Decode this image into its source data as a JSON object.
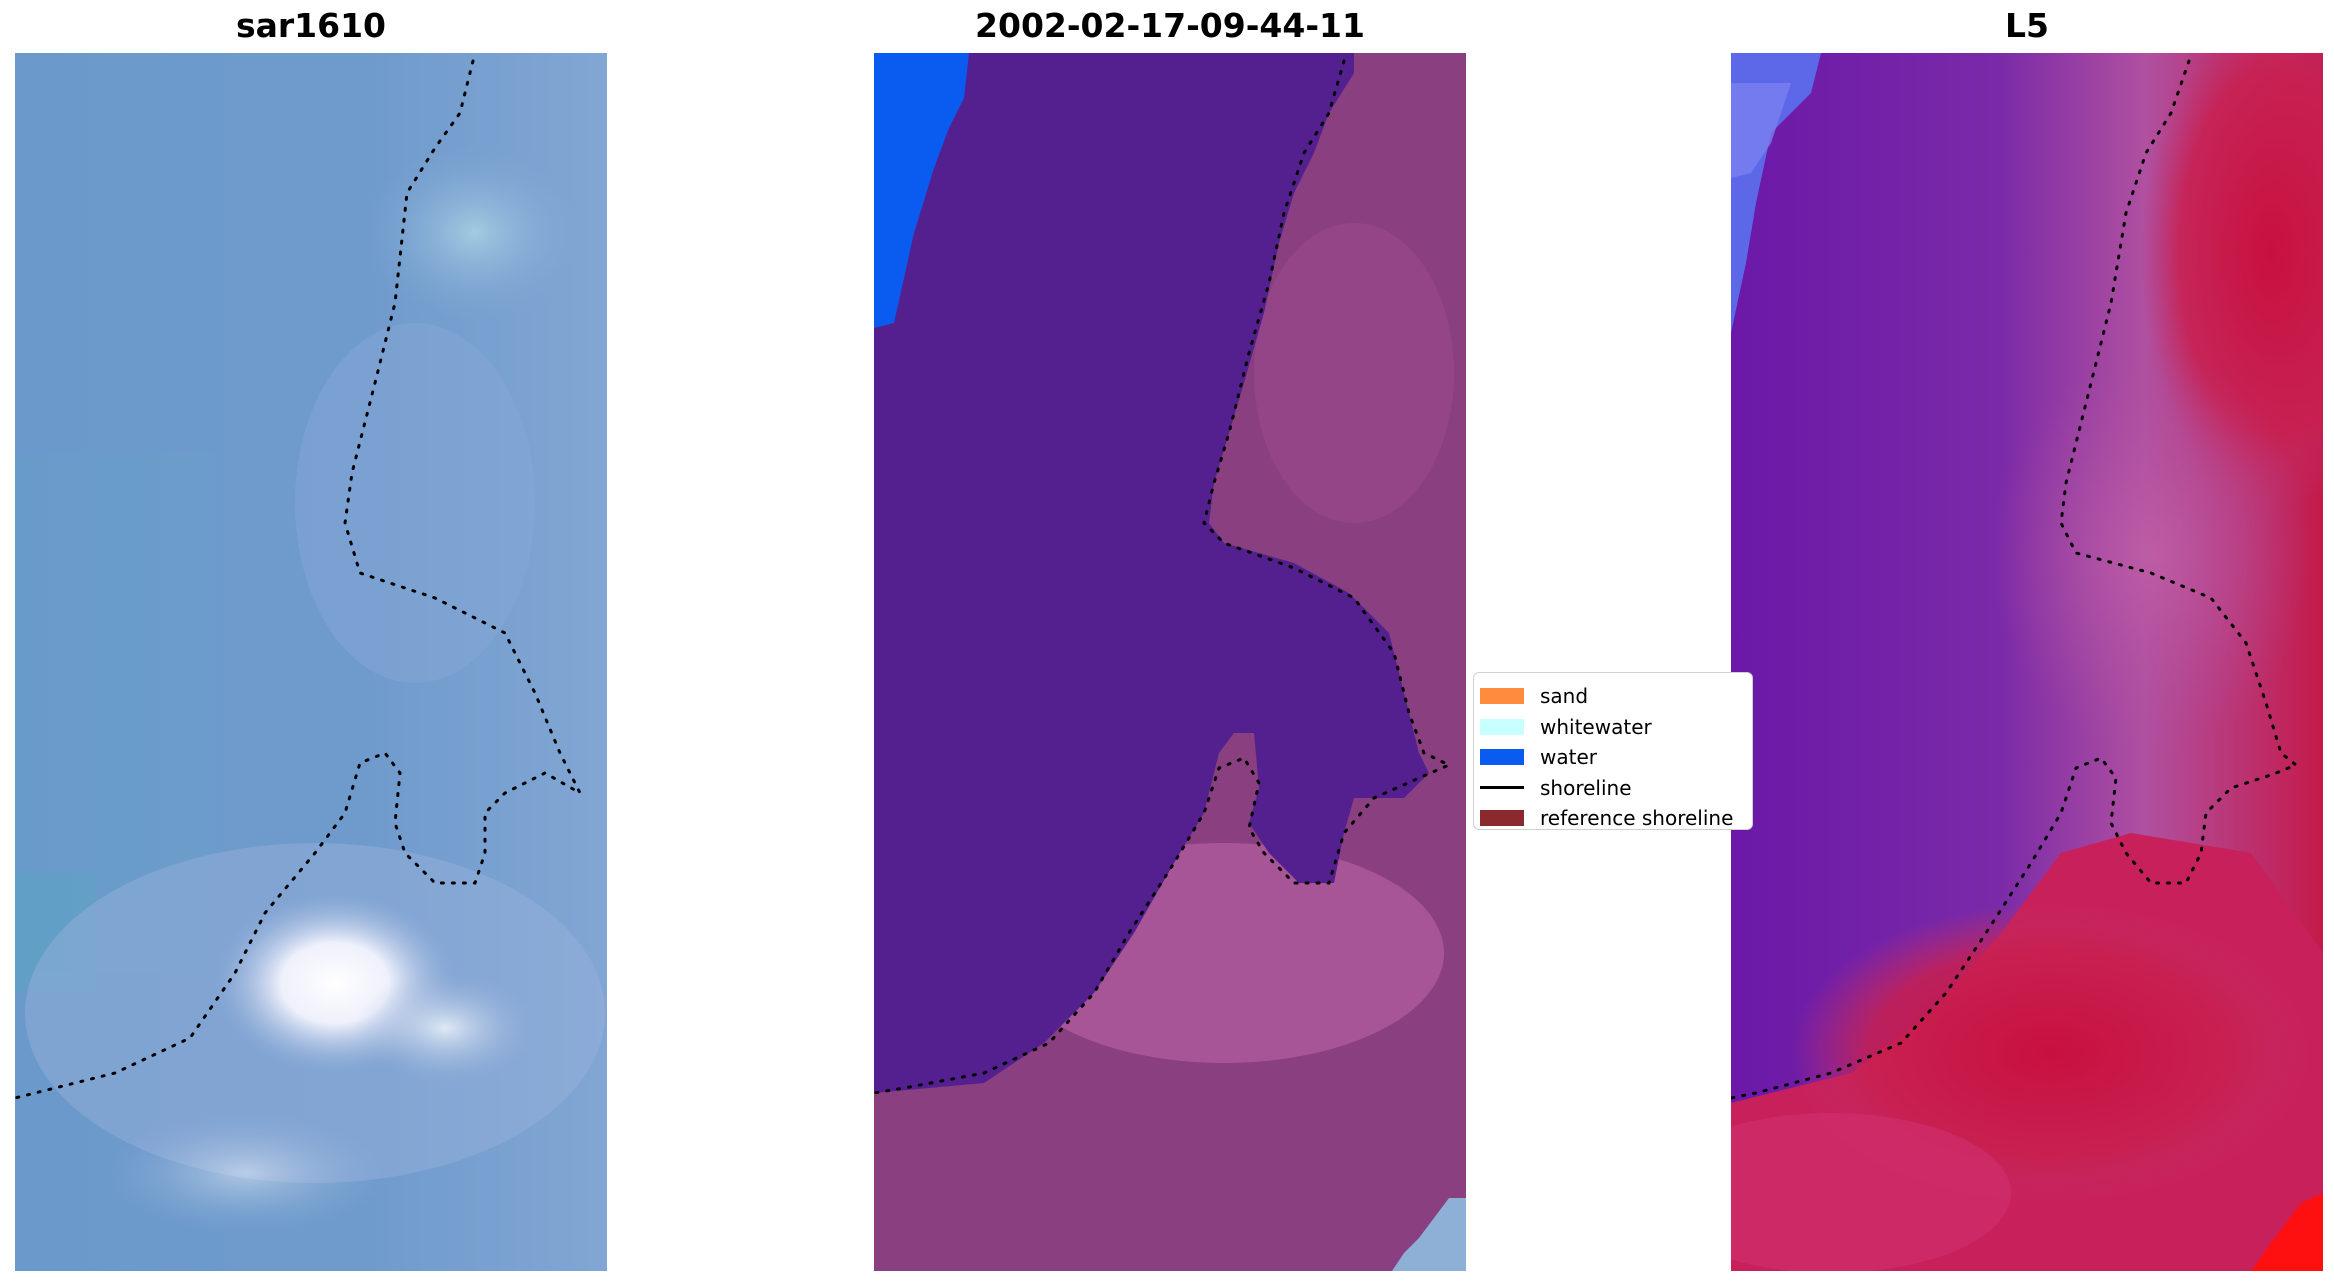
{
  "panels": [
    {
      "title": "sar1610"
    },
    {
      "title": "2002-02-17-09-44-11"
    },
    {
      "title": "L5"
    }
  ],
  "legend": {
    "items": [
      {
        "label": "sand",
        "color": "#ff8c3d",
        "kind": "patch"
      },
      {
        "label": "whitewater",
        "color": "#c8ffff",
        "kind": "patch"
      },
      {
        "label": "water",
        "color": "#0a5cf0",
        "kind": "patch"
      },
      {
        "label": "shoreline",
        "color": "#000000",
        "kind": "line"
      },
      {
        "label": "reference shoreline",
        "color": "#8b2a2e",
        "kind": "patch"
      }
    ]
  },
  "colors": {
    "rgb_water": "#6a96c8",
    "rgb_land": "#7ea4d4",
    "rgb_whitewater": "#f4f4fb",
    "class_water": "#54208f",
    "class_land": "#8a3f80",
    "class_land_light": "#b25da0",
    "class_open_water": "#0a5cf0",
    "index_water": "#6b18a8",
    "index_land": "#c41a4a",
    "index_mid": "#b050a0",
    "index_corner": "#ff1010"
  }
}
